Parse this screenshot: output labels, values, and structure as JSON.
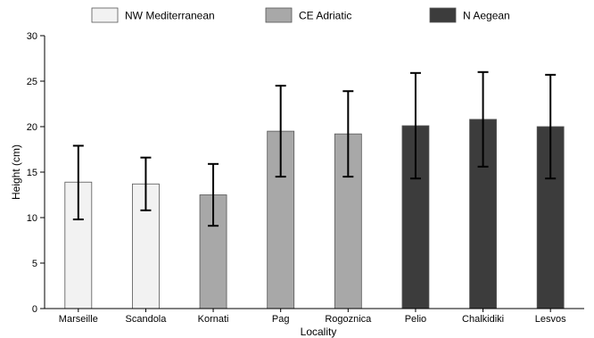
{
  "chart_data": {
    "type": "bar",
    "xlabel": "Locality",
    "ylabel": "Height (cm)",
    "ylim": [
      0,
      30
    ],
    "yticks": [
      0,
      5,
      10,
      15,
      20,
      25,
      30
    ],
    "legend": {
      "placement": "top"
    },
    "groups": [
      {
        "name": "NW Mediterranean",
        "color": "#f2f2f2"
      },
      {
        "name": "CE Adriatic",
        "color": "#a8a8a8"
      },
      {
        "name": "N Aegean",
        "color": "#3c3c3c"
      }
    ],
    "categories": [
      "Marseille",
      "Scandola",
      "Kornati",
      "Pag",
      "Rogoznica",
      "Pelio",
      "Chalkidiki",
      "Lesvos"
    ],
    "category_group": [
      0,
      0,
      1,
      1,
      1,
      2,
      2,
      2
    ],
    "values": [
      13.9,
      13.7,
      12.5,
      19.5,
      19.2,
      20.1,
      20.8,
      20.0
    ],
    "error_low": [
      9.8,
      10.8,
      9.1,
      14.5,
      14.5,
      14.3,
      15.6,
      14.3
    ],
    "error_high": [
      17.9,
      16.6,
      15.9,
      24.5,
      23.9,
      25.9,
      26.0,
      25.7
    ]
  }
}
